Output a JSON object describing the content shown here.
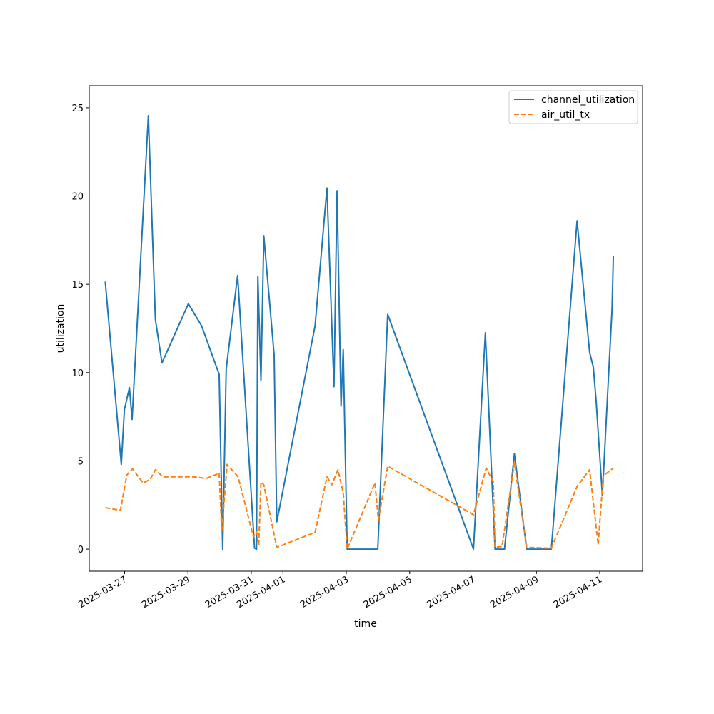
{
  "chart_data": {
    "type": "line",
    "title": "",
    "xlabel": "time",
    "ylabel": "utilization",
    "xlim": [
      "2025-03-25T21:14",
      "2025-04-12T08:28"
    ],
    "ylim": [
      -1.25,
      26.25
    ],
    "x_ticks": [
      "2025-03-27",
      "2025-03-29",
      "2025-03-31",
      "2025-04-01",
      "2025-04-03",
      "2025-04-05",
      "2025-04-07",
      "2025-04-09",
      "2025-04-11"
    ],
    "y_ticks": [
      0,
      5,
      10,
      15,
      20,
      25
    ],
    "grid": false,
    "legend": "top-right",
    "series": [
      {
        "name": "channel_utilization",
        "color": "#1f77b4",
        "style": "solid",
        "points": [
          [
            "2025-03-26T09:20",
            15.15
          ],
          [
            "2025-03-26T21:30",
            4.8
          ],
          [
            "2025-03-26T23:50",
            7.9
          ],
          [
            "2025-03-27T03:40",
            9.15
          ],
          [
            "2025-03-27T05:40",
            7.35
          ],
          [
            "2025-03-27T06:50",
            9.0
          ],
          [
            "2025-03-27T18:00",
            24.55
          ],
          [
            "2025-03-27T23:20",
            13.0
          ],
          [
            "2025-03-28T04:20",
            10.55
          ],
          [
            "2025-03-29T00:20",
            13.9
          ],
          [
            "2025-03-29T10:20",
            12.65
          ],
          [
            "2025-03-29T23:40",
            9.9
          ],
          [
            "2025-03-30T02:20",
            0.0
          ],
          [
            "2025-03-30T05:00",
            10.2
          ],
          [
            "2025-03-30T13:40",
            15.5
          ],
          [
            "2025-03-31T02:30",
            0.05
          ],
          [
            "2025-03-31T04:00",
            0.0
          ],
          [
            "2025-03-31T05:00",
            15.45
          ],
          [
            "2025-03-31T07:20",
            9.55
          ],
          [
            "2025-03-31T09:30",
            17.75
          ],
          [
            "2025-03-31T17:20",
            11.0
          ],
          [
            "2025-03-31T19:20",
            1.55
          ],
          [
            "2025-04-02T00:20",
            12.65
          ],
          [
            "2025-04-02T09:20",
            20.45
          ],
          [
            "2025-04-02T14:40",
            9.2
          ],
          [
            "2025-04-02T17:00",
            20.3
          ],
          [
            "2025-04-02T20:00",
            8.1
          ],
          [
            "2025-04-02T21:40",
            11.3
          ],
          [
            "2025-04-03T00:40",
            0.0
          ],
          [
            "2025-04-03T23:50",
            0.0
          ],
          [
            "2025-04-04T07:20",
            13.3
          ],
          [
            "2025-04-07T00:20",
            0.0
          ],
          [
            "2025-04-07T09:20",
            12.25
          ],
          [
            "2025-04-07T16:40",
            0.0
          ],
          [
            "2025-04-07T23:50",
            0.0
          ],
          [
            "2025-04-08T07:20",
            5.4
          ],
          [
            "2025-04-08T16:40",
            0.0
          ],
          [
            "2025-04-09T11:20",
            0.0
          ],
          [
            "2025-04-10T06:50",
            18.6
          ],
          [
            "2025-04-10T16:20",
            11.15
          ],
          [
            "2025-04-10T19:10",
            10.3
          ],
          [
            "2025-04-10T21:20",
            8.35
          ],
          [
            "2025-04-11T02:00",
            3.05
          ],
          [
            "2025-04-11T09:20",
            13.6
          ],
          [
            "2025-04-11T10:20",
            16.6
          ]
        ]
      },
      {
        "name": "air_util_tx",
        "color": "#ff7f0e",
        "style": "dashed",
        "points": [
          [
            "2025-03-26T09:20",
            2.35
          ],
          [
            "2025-03-26T20:50",
            2.2
          ],
          [
            "2025-03-27T01:40",
            4.2
          ],
          [
            "2025-03-27T06:00",
            4.55
          ],
          [
            "2025-03-27T14:00",
            3.75
          ],
          [
            "2025-03-27T19:20",
            3.95
          ],
          [
            "2025-03-27T23:20",
            4.5
          ],
          [
            "2025-03-28T05:00",
            4.1
          ],
          [
            "2025-03-29T04:20",
            4.1
          ],
          [
            "2025-03-29T13:40",
            4.0
          ],
          [
            "2025-03-29T23:40",
            4.3
          ],
          [
            "2025-03-30T01:40",
            1.05
          ],
          [
            "2025-03-30T05:40",
            4.8
          ],
          [
            "2025-03-30T14:00",
            4.1
          ],
          [
            "2025-03-31T01:40",
            0.7
          ],
          [
            "2025-03-31T04:00",
            1.0
          ],
          [
            "2025-03-31T05:40",
            0.25
          ],
          [
            "2025-03-31T07:20",
            3.8
          ],
          [
            "2025-03-31T09:30",
            3.65
          ],
          [
            "2025-03-31T19:20",
            0.1
          ],
          [
            "2025-04-02T00:20",
            0.95
          ],
          [
            "2025-04-02T09:20",
            4.1
          ],
          [
            "2025-04-02T13:00",
            3.65
          ],
          [
            "2025-04-02T17:40",
            4.5
          ],
          [
            "2025-04-02T21:40",
            3.2
          ],
          [
            "2025-04-03T00:40",
            0.0
          ],
          [
            "2025-04-03T21:40",
            3.75
          ],
          [
            "2025-04-04T00:20",
            1.65
          ],
          [
            "2025-04-04T07:20",
            4.7
          ],
          [
            "2025-04-07T00:20",
            1.95
          ],
          [
            "2025-04-07T10:00",
            4.6
          ],
          [
            "2025-04-07T15:20",
            3.8
          ],
          [
            "2025-04-07T16:40",
            0.1
          ],
          [
            "2025-04-07T22:00",
            0.15
          ],
          [
            "2025-04-08T07:20",
            4.9
          ],
          [
            "2025-04-08T16:40",
            0.1
          ],
          [
            "2025-04-09T11:20",
            0.05
          ],
          [
            "2025-04-10T06:50",
            3.55
          ],
          [
            "2025-04-10T16:20",
            4.5
          ],
          [
            "2025-04-10T22:50",
            0.25
          ],
          [
            "2025-04-11T02:40",
            4.15
          ],
          [
            "2025-04-11T10:20",
            4.6
          ]
        ]
      }
    ]
  }
}
